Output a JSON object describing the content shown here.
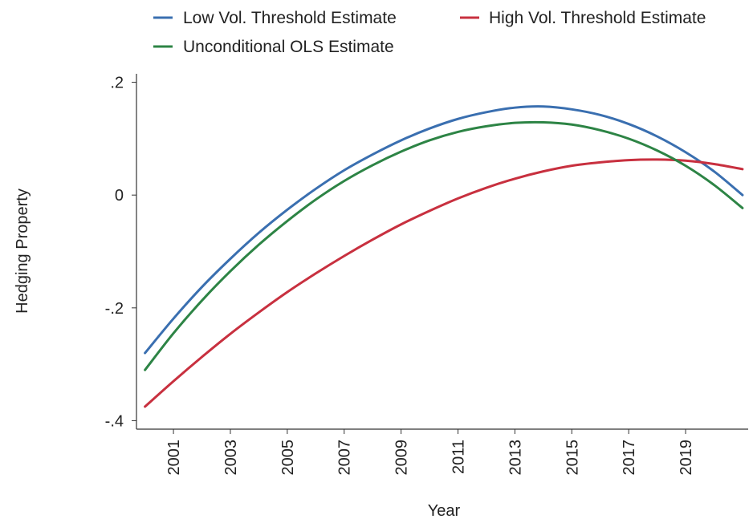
{
  "chart_data": {
    "type": "line",
    "title": "",
    "xlabel": "Year",
    "ylabel": "Hedging Property",
    "x": [
      2000,
      2001,
      2002,
      2003,
      2004,
      2005,
      2006,
      2007,
      2008,
      2009,
      2010,
      2011,
      2012,
      2013,
      2014,
      2015,
      2016,
      2017,
      2018,
      2019,
      2020,
      2021
    ],
    "xticks": [
      2001,
      2003,
      2005,
      2007,
      2009,
      2011,
      2013,
      2015,
      2017,
      2019
    ],
    "xtick_labels": [
      "2001",
      "2003",
      "2005",
      "2007",
      "2009",
      "2011",
      "2013",
      "2015",
      "2017",
      "2019"
    ],
    "yticks": [
      -0.4,
      -0.2,
      0,
      0.2
    ],
    "ytick_labels": [
      "-.4",
      "-.2",
      "0",
      ".2"
    ],
    "xlim": [
      1999.7,
      2021.2
    ],
    "ylim": [
      -0.415,
      0.215
    ],
    "grid": false,
    "legend_position": "top",
    "series": [
      {
        "name": "Low Vol. Threshold Estimate",
        "color": "#3a6fb0",
        "values": [
          -0.28,
          -0.219,
          -0.163,
          -0.113,
          -0.067,
          -0.026,
          0.011,
          0.044,
          0.072,
          0.097,
          0.118,
          0.135,
          0.147,
          0.155,
          0.157,
          0.152,
          0.142,
          0.126,
          0.104,
          0.076,
          0.042,
          0.0
        ]
      },
      {
        "name": "High Vol. Threshold Estimate",
        "color": "#c8303f",
        "values": [
          -0.375,
          -0.33,
          -0.287,
          -0.246,
          -0.208,
          -0.172,
          -0.139,
          -0.108,
          -0.079,
          -0.052,
          -0.028,
          -0.006,
          0.013,
          0.029,
          0.042,
          0.052,
          0.058,
          0.062,
          0.063,
          0.061,
          0.055,
          0.046
        ]
      },
      {
        "name": "Unconditional OLS Estimate",
        "color": "#2d8445",
        "values": [
          -0.31,
          -0.245,
          -0.187,
          -0.135,
          -0.088,
          -0.046,
          -0.008,
          0.025,
          0.053,
          0.077,
          0.097,
          0.112,
          0.122,
          0.128,
          0.129,
          0.125,
          0.115,
          0.1,
          0.079,
          0.052,
          0.018,
          -0.023
        ]
      }
    ]
  }
}
